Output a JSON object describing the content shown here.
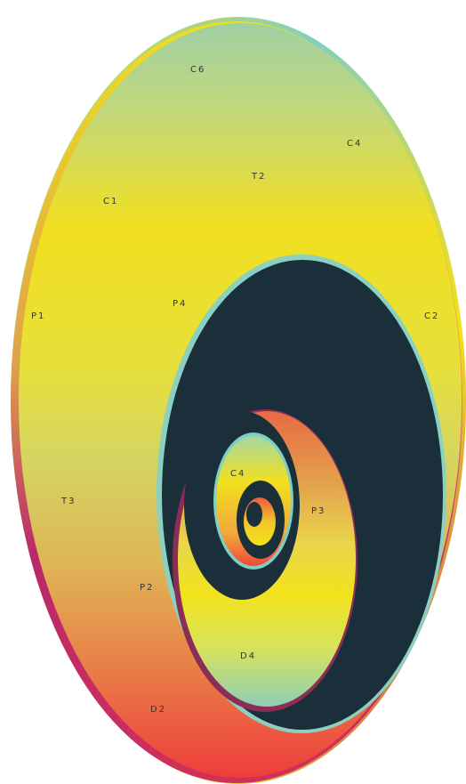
{
  "diagram": {
    "labels": [
      {
        "id": "c6",
        "text": "C6"
      },
      {
        "id": "c4-outer",
        "text": "C4"
      },
      {
        "id": "t2",
        "text": "T2"
      },
      {
        "id": "c1",
        "text": "C1"
      },
      {
        "id": "p1",
        "text": "P1"
      },
      {
        "id": "p4",
        "text": "P4"
      },
      {
        "id": "c2",
        "text": "C2"
      },
      {
        "id": "c4-inner",
        "text": "C4"
      },
      {
        "id": "t3",
        "text": "T3"
      },
      {
        "id": "p3",
        "text": "P3"
      },
      {
        "id": "p2",
        "text": "P2"
      },
      {
        "id": "d4",
        "text": "D4"
      },
      {
        "id": "d2",
        "text": "D2"
      }
    ]
  },
  "colors": {
    "dark": "#1b2f3b",
    "yellow": "#f2e020",
    "teal": "#7fcfc4",
    "red": "#ec4a3e",
    "magenta": "#b8296b"
  }
}
